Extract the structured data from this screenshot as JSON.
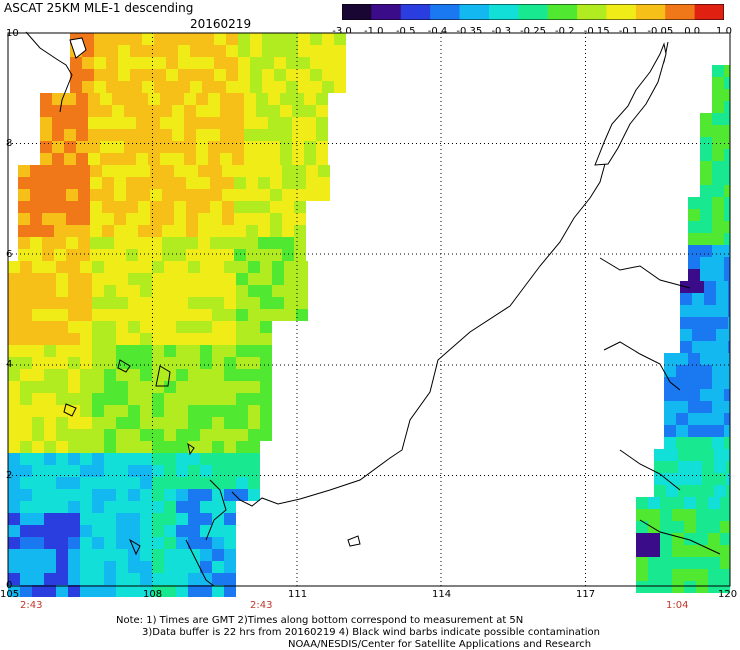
{
  "header": {
    "title": "ASCAT 25KM MLE-1 descending",
    "date": "20160219"
  },
  "colorbar": {
    "labels": [
      "-3.0",
      "-1.0",
      "-0.5",
      "-0.4",
      "-0.35",
      "-0.3",
      "-0.25",
      "-0.2",
      "-0.15",
      "-0.1",
      "-0.05",
      "0.0",
      "1.0"
    ],
    "colors": [
      "#1a0633",
      "#3a0c8a",
      "#2a3ee0",
      "#1a78f0",
      "#14b8f0",
      "#12e0d8",
      "#18e890",
      "#50e830",
      "#b0ec20",
      "#f0ec18",
      "#f7c018",
      "#f07818",
      "#e02010"
    ]
  },
  "axes": {
    "lon_labels": [
      "105",
      "108",
      "111",
      "114",
      "117",
      "120"
    ],
    "lat_labels": [
      "0",
      "2",
      "4",
      "6",
      "8",
      "10"
    ]
  },
  "times": {
    "t1": "2:43",
    "t2": "2:43",
    "t3": "1:04"
  },
  "footer": {
    "line1": "Note: 1) Times are GMT 2)Times along bottom correspond to measurement at 5N",
    "line2": "3)Data buffer is 22 hrs from 20160219 4) Black wind barbs indicate possible contamination",
    "line3": "NOAA/NESDIS/Center for Satellite Applications and Research"
  }
}
